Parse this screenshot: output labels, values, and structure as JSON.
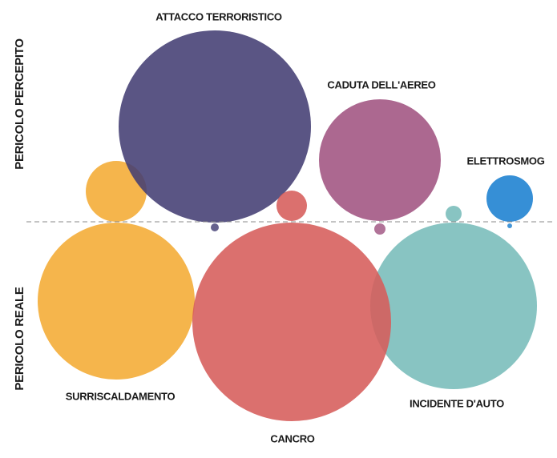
{
  "axes": {
    "top": "PERICOLO PERCEPITO",
    "bottom": "PERICOLO REALE"
  },
  "items": [
    {
      "label": "ATTACCO TERRORISTICO"
    },
    {
      "label": "CADUTA DELL'AEREO"
    },
    {
      "label": "ELETTROSMOG"
    },
    {
      "label": "SURRISCALDAMENTO"
    },
    {
      "label": "CANCRO"
    },
    {
      "label": "INCIDENTE D'AUTO"
    }
  ]
}
